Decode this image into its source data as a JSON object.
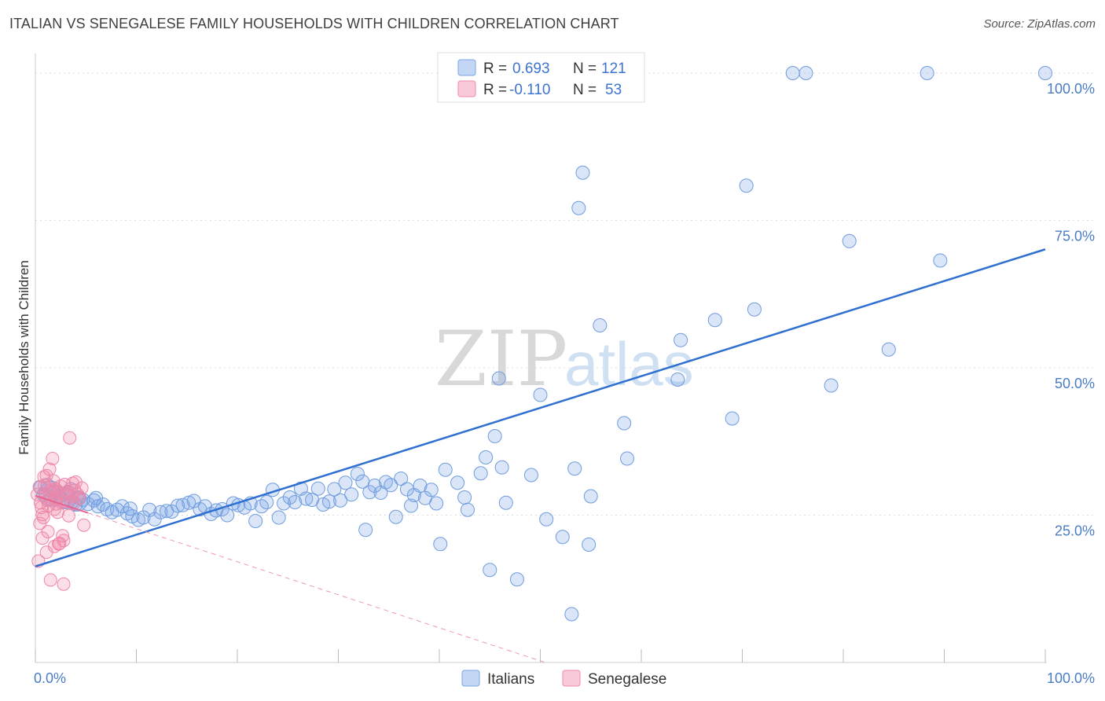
{
  "title": "ITALIAN VS SENEGALESE FAMILY HOUSEHOLDS WITH CHILDREN CORRELATION CHART",
  "source": "Source: ZipAtlas.com",
  "watermark": {
    "zip": "ZIP",
    "atlas": "atlas"
  },
  "chart_data": {
    "type": "scatter",
    "ylabel": "Family Households with Children",
    "xlim": [
      0,
      100
    ],
    "ylim": [
      0,
      102
    ],
    "x_tick_labels": {
      "left": "0.0%",
      "right": "100.0%"
    },
    "y_ticks": [
      {
        "value": 25,
        "label": "25.0%"
      },
      {
        "value": 50,
        "label": "50.0%"
      },
      {
        "value": 75,
        "label": "75.0%"
      },
      {
        "value": 100,
        "label": "100.0%"
      }
    ],
    "legend": {
      "rows": [
        {
          "r_label": "R =",
          "r_value": "0.693",
          "n_label": "N =",
          "n_value": "121",
          "color": "#7aa6e6"
        },
        {
          "r_label": "R =",
          "r_value": "-0.110",
          "n_label": "N =",
          "n_value": "53",
          "color": "#f08aaa"
        }
      ]
    },
    "series": [
      {
        "name": "Italians",
        "color": "#7aa6e6",
        "trend": {
          "x0": 0,
          "y0": 16.3,
          "x1": 100,
          "y1": 70.1
        },
        "points": [
          [
            0.5,
            29.7
          ],
          [
            0.8,
            28.5
          ],
          [
            1.2,
            30.1
          ],
          [
            1.5,
            27.8
          ],
          [
            2,
            29
          ],
          [
            2.4,
            28.2
          ],
          [
            2.8,
            27.4
          ],
          [
            3.2,
            28.8
          ],
          [
            3.6,
            27.2
          ],
          [
            4,
            26.8
          ],
          [
            4.3,
            28.0
          ],
          [
            4.7,
            27.6
          ],
          [
            5.2,
            26.9
          ],
          [
            5.8,
            27.5
          ],
          [
            6.2,
            26.5
          ],
          [
            6.7,
            26.8
          ],
          [
            7.1,
            26.0
          ],
          [
            7.6,
            25.5
          ],
          [
            8.1,
            25.9
          ],
          [
            8.6,
            26.5
          ],
          [
            9.1,
            25.3
          ],
          [
            9.6,
            24.8
          ],
          [
            10.2,
            24.2
          ],
          [
            10.7,
            24.6
          ],
          [
            11.3,
            25.9
          ],
          [
            11.8,
            24.3
          ],
          [
            12.4,
            25.5
          ],
          [
            13,
            25.7
          ],
          [
            13.5,
            25.6
          ],
          [
            14.1,
            26.6
          ],
          [
            14.6,
            26.7
          ],
          [
            15.2,
            27.1
          ],
          [
            15.7,
            27.4
          ],
          [
            16.3,
            26.0
          ],
          [
            16.8,
            26.5
          ],
          [
            17.4,
            25.2
          ],
          [
            17.9,
            25.8
          ],
          [
            18.5,
            26.0
          ],
          [
            19,
            25.0
          ],
          [
            19.6,
            27.0
          ],
          [
            20.1,
            26.7
          ],
          [
            20.7,
            26.3
          ],
          [
            21.3,
            27.0
          ],
          [
            21.8,
            24.0
          ],
          [
            22.4,
            26.5
          ],
          [
            22.9,
            27.2
          ],
          [
            23.5,
            29.3
          ],
          [
            24.1,
            24.6
          ],
          [
            24.6,
            27.0
          ],
          [
            25.2,
            28.0
          ],
          [
            25.7,
            27.2
          ],
          [
            26.3,
            29.5
          ],
          [
            26.8,
            27.8
          ],
          [
            27.4,
            27.6
          ],
          [
            28,
            29.5
          ],
          [
            28.5,
            26.8
          ],
          [
            29.1,
            27.3
          ],
          [
            29.6,
            29.4
          ],
          [
            30.2,
            27.5
          ],
          [
            30.7,
            30.5
          ],
          [
            31.3,
            28.5
          ],
          [
            31.9,
            32.0
          ],
          [
            32.4,
            30.7
          ],
          [
            32.7,
            22.5
          ],
          [
            33.1,
            28.9
          ],
          [
            33.6,
            30.0
          ],
          [
            34.2,
            28.8
          ],
          [
            34.7,
            30.6
          ],
          [
            35.2,
            30.1
          ],
          [
            35.7,
            24.7
          ],
          [
            36.2,
            31.2
          ],
          [
            36.8,
            29.4
          ],
          [
            37.2,
            26.6
          ],
          [
            37.5,
            28.4
          ],
          [
            38.1,
            30.0
          ],
          [
            38.6,
            27.9
          ],
          [
            39.2,
            29.3
          ],
          [
            39.7,
            27.0
          ],
          [
            40.1,
            20.1
          ],
          [
            40.6,
            32.7
          ],
          [
            41.8,
            30.5
          ],
          [
            42.5,
            28.0
          ],
          [
            42.8,
            25.9
          ],
          [
            44.1,
            32.1
          ],
          [
            44.6,
            34.8
          ],
          [
            45.0,
            15.7
          ],
          [
            45.5,
            38.4
          ],
          [
            45.9,
            48.2
          ],
          [
            46.2,
            33.1
          ],
          [
            46.6,
            27.1
          ],
          [
            47.7,
            14.1
          ],
          [
            49.1,
            31.8
          ],
          [
            50.0,
            45.4
          ],
          [
            50.6,
            24.3
          ],
          [
            52.2,
            21.3
          ],
          [
            53.1,
            8.2
          ],
          [
            53.4,
            32.9
          ],
          [
            53.8,
            77.1
          ],
          [
            54.2,
            83.1
          ],
          [
            54.8,
            20.0
          ],
          [
            55.0,
            28.2
          ],
          [
            55.9,
            57.2
          ],
          [
            58.3,
            40.6
          ],
          [
            58.6,
            34.6
          ],
          [
            63.6,
            48.0
          ],
          [
            63.9,
            54.7
          ],
          [
            67.3,
            58.1
          ],
          [
            69.0,
            41.4
          ],
          [
            70.4,
            80.9
          ],
          [
            71.2,
            59.9
          ],
          [
            75.0,
            100.0
          ],
          [
            76.3,
            100.0
          ],
          [
            78.8,
            47.0
          ],
          [
            80.6,
            71.5
          ],
          [
            84.5,
            53.1
          ],
          [
            88.3,
            100.0
          ],
          [
            89.6,
            68.2
          ],
          [
            100,
            100.0
          ],
          [
            3.5,
            29.4
          ],
          [
            1.8,
            28.9
          ],
          [
            6.0,
            27.9
          ],
          [
            9.4,
            26.1
          ]
        ]
      },
      {
        "name": "Senegalese",
        "color": "#f08aaa",
        "trend": {
          "x0": 0,
          "y0": 28.3,
          "x1": 50.5,
          "y1": 0,
          "solid_until_x": 5.2
        },
        "points": [
          [
            0.2,
            28.5
          ],
          [
            0.4,
            29.8
          ],
          [
            0.5,
            27.1
          ],
          [
            0.6,
            26.3
          ],
          [
            0.7,
            25.1
          ],
          [
            0.8,
            24.6
          ],
          [
            0.9,
            30.1
          ],
          [
            1.0,
            28.7
          ],
          [
            1.1,
            31.7
          ],
          [
            1.2,
            27.5
          ],
          [
            1.3,
            26.6
          ],
          [
            1.4,
            32.8
          ],
          [
            1.5,
            29.1
          ],
          [
            1.6,
            28.0
          ],
          [
            1.7,
            34.6
          ],
          [
            1.8,
            30.8
          ],
          [
            1.9,
            26.0
          ],
          [
            2.0,
            29.4
          ],
          [
            2.1,
            27.7
          ],
          [
            2.2,
            25.5
          ],
          [
            2.3,
            28.9
          ],
          [
            2.4,
            20.2
          ],
          [
            2.5,
            29.9
          ],
          [
            2.6,
            27.1
          ],
          [
            2.7,
            21.5
          ],
          [
            2.8,
            20.7
          ],
          [
            2.9,
            30.2
          ],
          [
            3.0,
            28.6
          ],
          [
            3.1,
            27.3
          ],
          [
            3.2,
            29.0
          ],
          [
            3.3,
            24.9
          ],
          [
            3.4,
            38.1
          ],
          [
            3.6,
            28.2
          ],
          [
            3.7,
            30.4
          ],
          [
            3.8,
            27.0
          ],
          [
            3.9,
            29.2
          ],
          [
            4.0,
            30.6
          ],
          [
            4.2,
            28.5
          ],
          [
            4.4,
            27.9
          ],
          [
            4.6,
            29.6
          ],
          [
            4.8,
            23.3
          ],
          [
            0.3,
            17.2
          ],
          [
            0.7,
            21.1
          ],
          [
            1.1,
            18.7
          ],
          [
            1.5,
            14.0
          ],
          [
            1.9,
            19.7
          ],
          [
            2.3,
            20.1
          ],
          [
            2.8,
            13.3
          ],
          [
            0.45,
            23.6
          ],
          [
            0.85,
            31.5
          ],
          [
            1.25,
            22.2
          ],
          [
            1.65,
            29.4
          ],
          [
            2.05,
            26.9
          ]
        ]
      }
    ]
  }
}
